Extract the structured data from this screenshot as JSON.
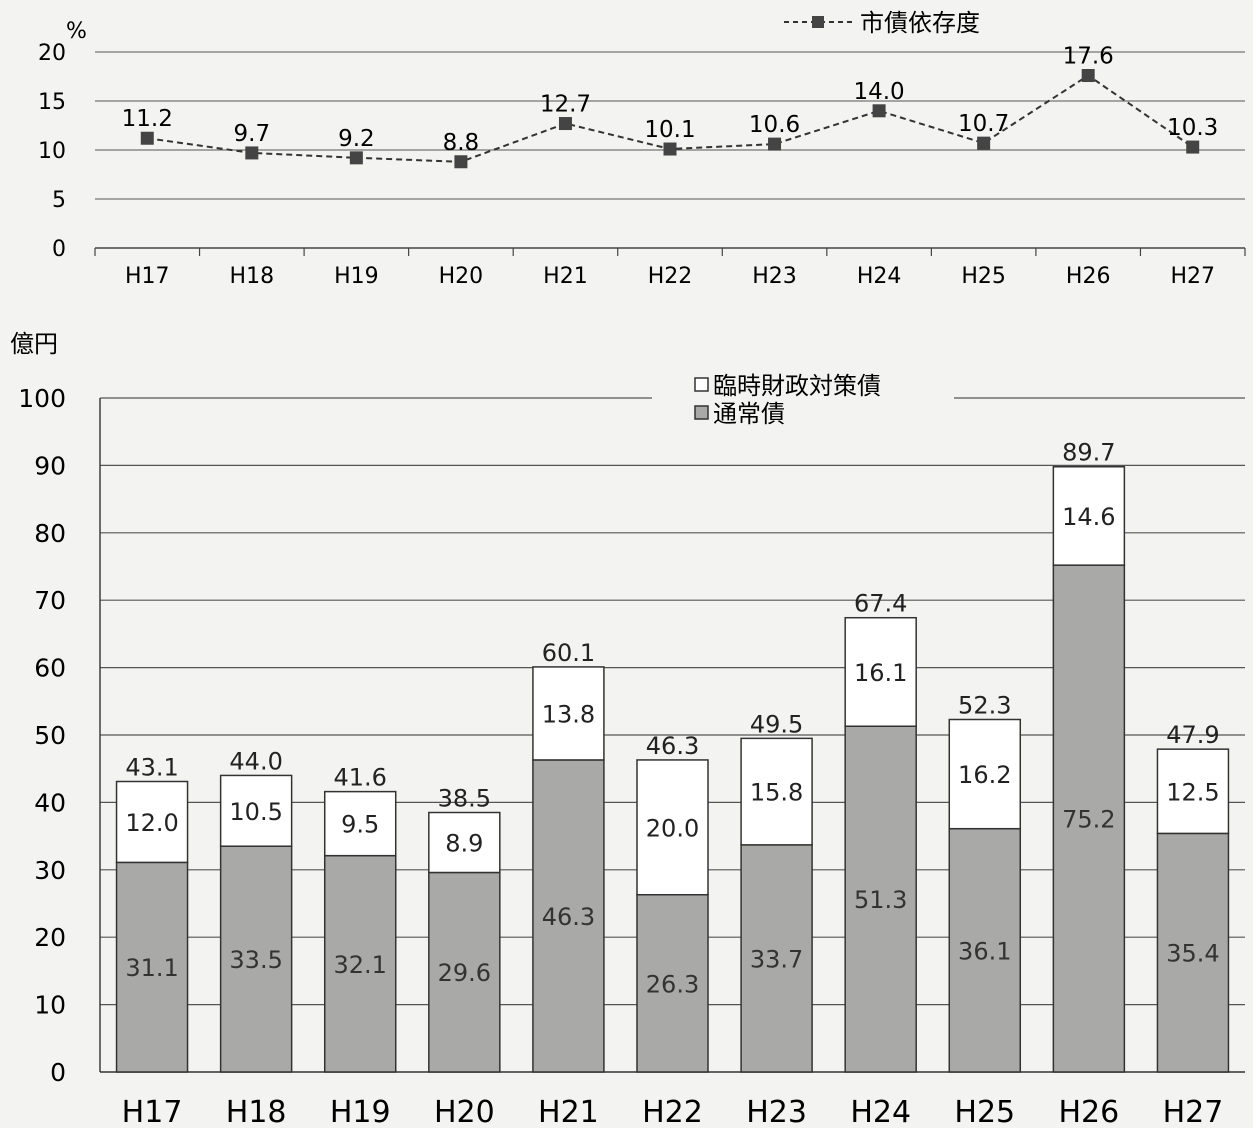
{
  "chart_data": [
    {
      "type": "line",
      "ylabel": "%",
      "ylim": [
        0,
        20
      ],
      "yticks": [
        0,
        5,
        10,
        15,
        20
      ],
      "grid": true,
      "legend_position": "top-right",
      "categories": [
        "H17",
        "H18",
        "H19",
        "H20",
        "H21",
        "H22",
        "H23",
        "H24",
        "H25",
        "H26",
        "H27"
      ],
      "series": [
        {
          "name": "市債依存度",
          "values": [
            11.2,
            9.7,
            9.2,
            8.8,
            12.7,
            10.1,
            10.6,
            14.0,
            10.7,
            17.6,
            10.3
          ],
          "labels": [
            "11.2",
            "9.7",
            "9.2",
            "8.8",
            "12.7",
            "10.1",
            "10.6",
            "14.0",
            "10.7",
            "17.6",
            "10.3"
          ],
          "color": "#333333",
          "line_style": "dashed",
          "marker": "square"
        }
      ]
    },
    {
      "type": "bar",
      "stacked": true,
      "ylabel": "億円",
      "ylim": [
        0,
        100
      ],
      "yticks": [
        0,
        10,
        20,
        30,
        40,
        50,
        60,
        70,
        80,
        90,
        100
      ],
      "grid": true,
      "legend_position": "top-center",
      "categories": [
        "H17",
        "H18",
        "H19",
        "H20",
        "H21",
        "H22",
        "H23",
        "H24",
        "H25",
        "H26",
        "H27"
      ],
      "series": [
        {
          "name": "通常債",
          "values": [
            31.1,
            33.5,
            32.1,
            29.6,
            46.3,
            26.3,
            33.7,
            51.3,
            36.1,
            75.2,
            35.4
          ],
          "labels": [
            "31.1",
            "33.5",
            "32.1",
            "29.6",
            "46.3",
            "26.3",
            "33.7",
            "51.3",
            "36.1",
            "75.2",
            "35.4"
          ],
          "color": "#a9a9a7"
        },
        {
          "name": "臨時財政対策債",
          "values": [
            12.0,
            10.5,
            9.5,
            8.9,
            13.8,
            20.0,
            15.8,
            16.1,
            16.2,
            14.6,
            12.5
          ],
          "labels": [
            "12.0",
            "10.5",
            "9.5",
            "8.9",
            "13.8",
            "20.0",
            "15.8",
            "16.1",
            "16.2",
            "14.6",
            "12.5"
          ],
          "color": "#ffffff"
        }
      ],
      "totals": [
        43.1,
        44.0,
        41.6,
        38.5,
        60.1,
        46.3,
        49.5,
        67.4,
        52.3,
        89.7,
        47.9
      ],
      "total_labels": [
        "43.1",
        "44.0",
        "41.6",
        "38.5",
        "60.1",
        "46.3",
        "49.5",
        "67.4",
        "52.3",
        "89.7",
        "47.9"
      ]
    }
  ]
}
